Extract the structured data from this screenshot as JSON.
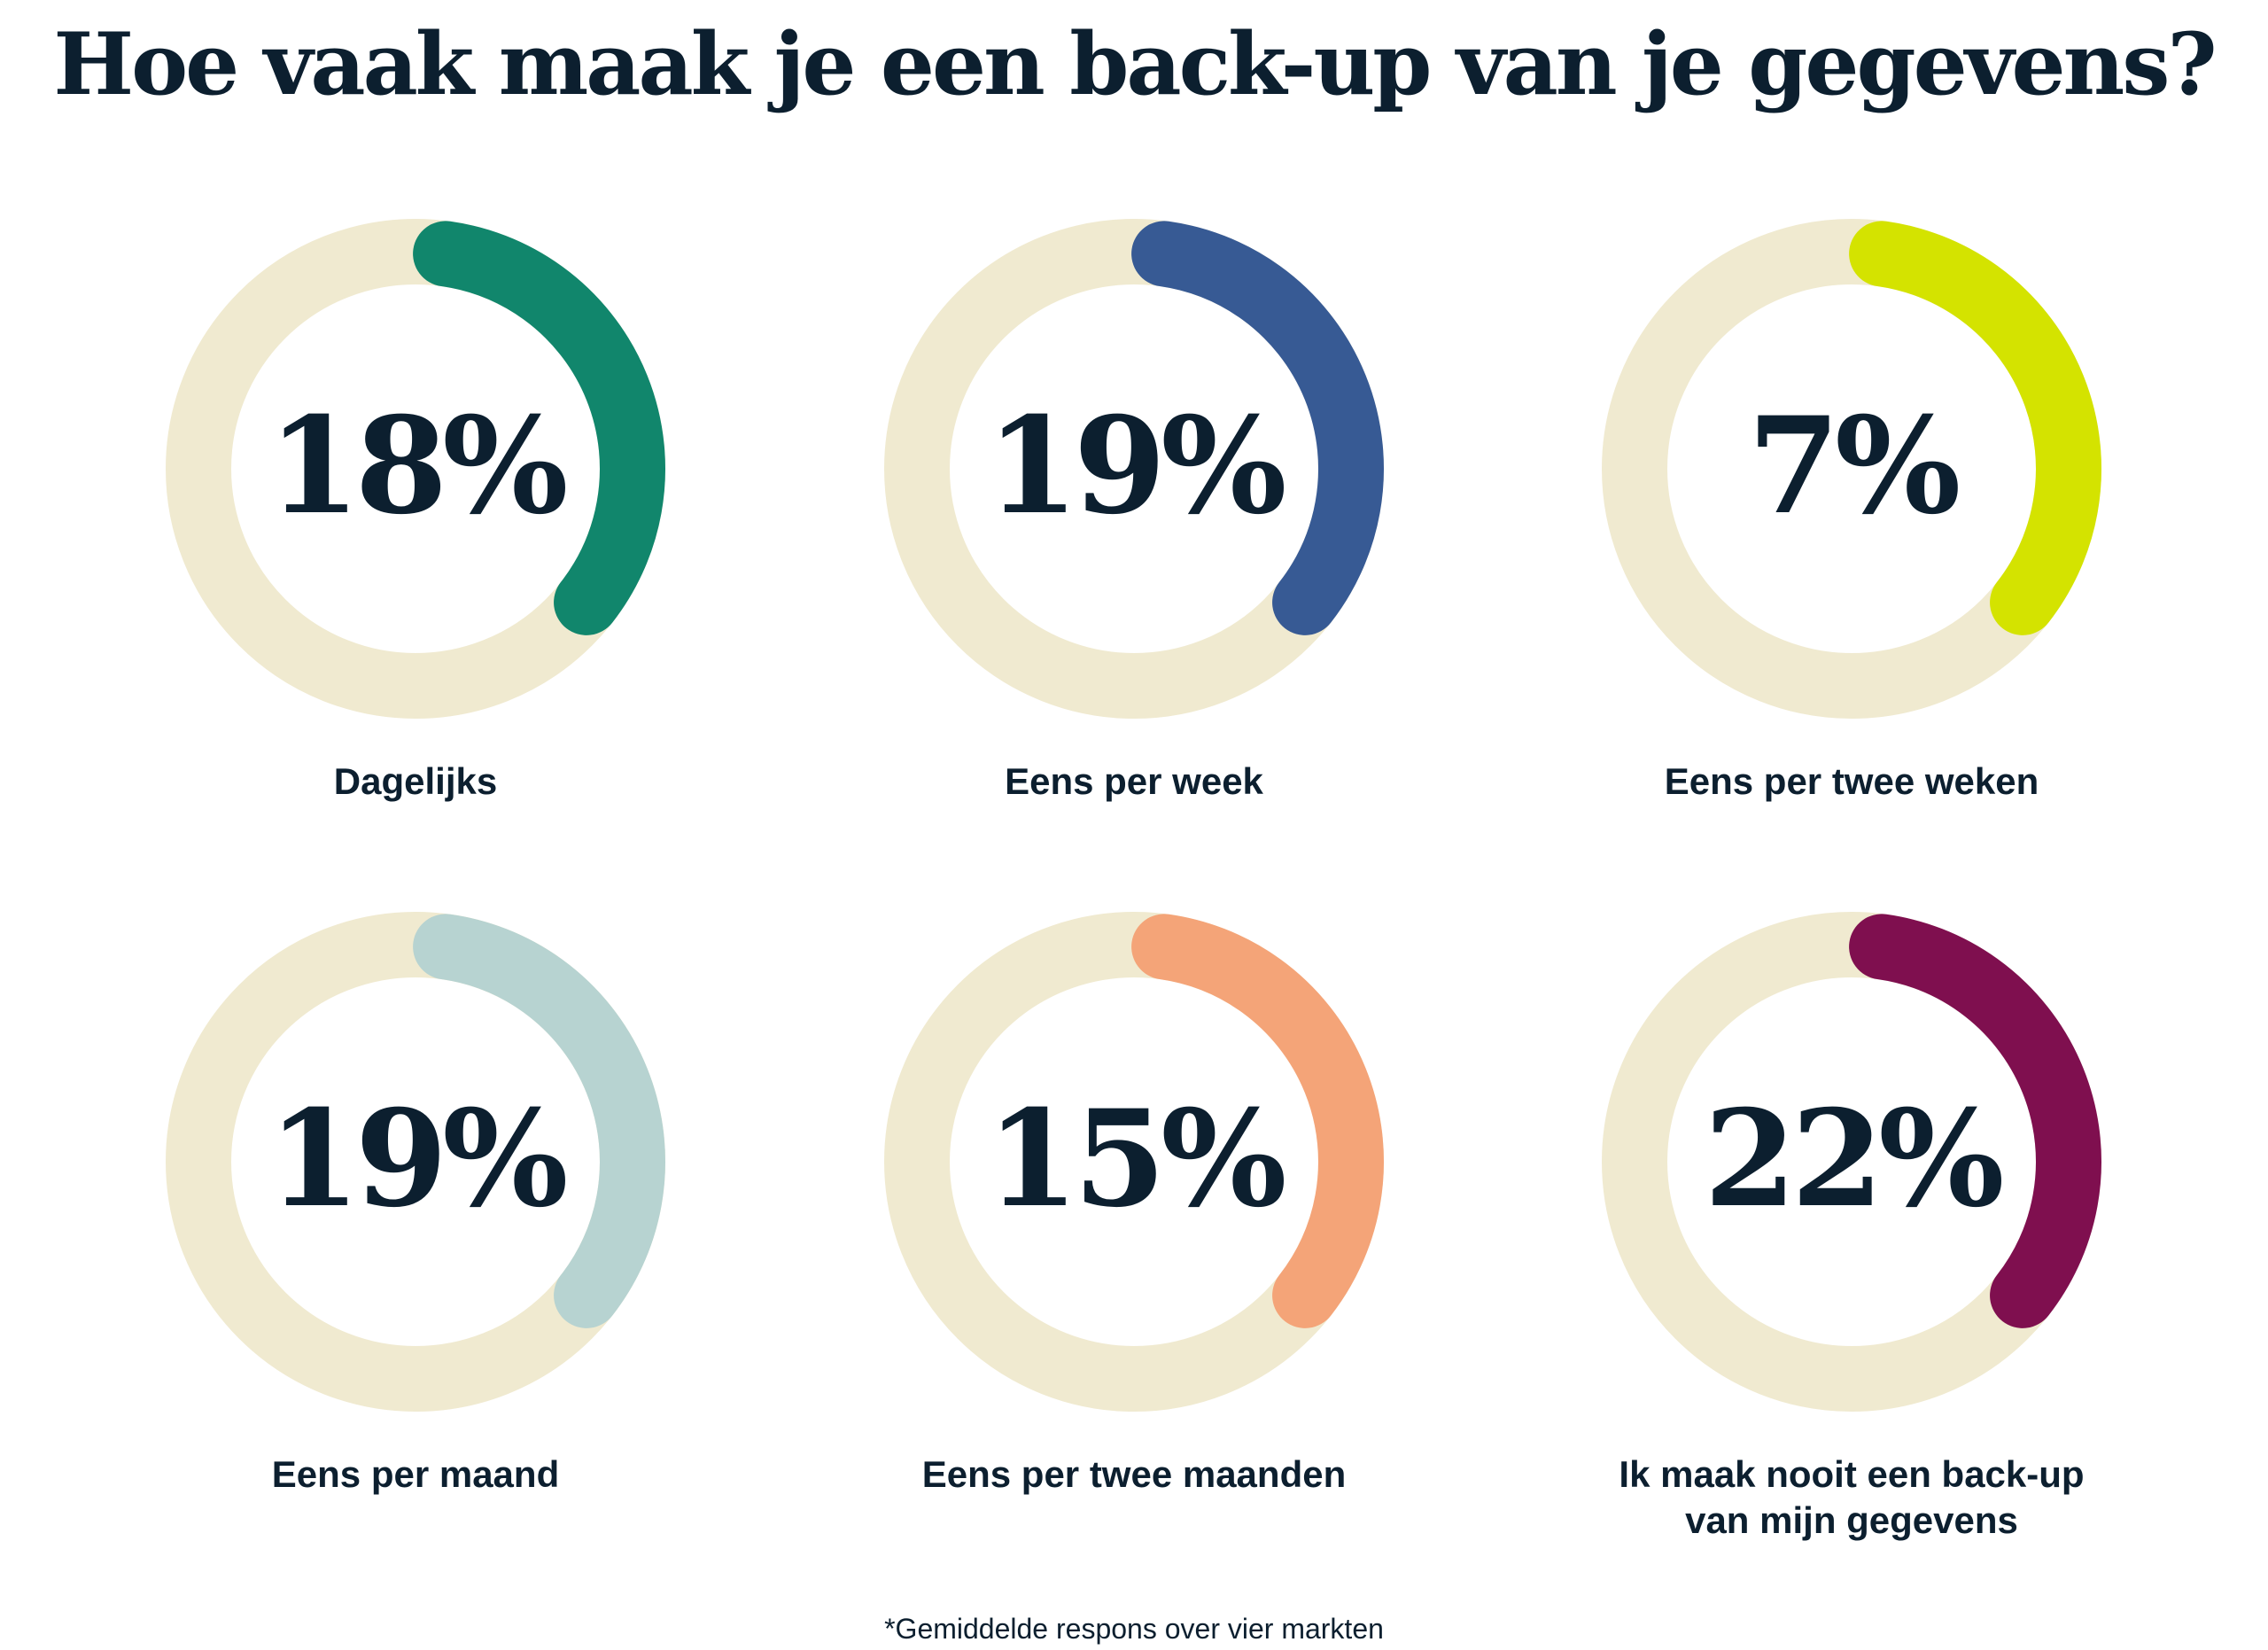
{
  "title": "Hoe vaak maak je een back-up van je gegevens?",
  "footnote": "*Gemiddelde respons over vier markten",
  "chart_data": {
    "type": "donut",
    "title": "Hoe vaak maak je een back-up van je gegevens?",
    "unit": "%",
    "track_color": "#f0ead0",
    "items": [
      {
        "label": "Dagelijks",
        "value": 18,
        "display": "18%",
        "color": "#11866c"
      },
      {
        "label": "Eens per week",
        "value": 19,
        "display": "19%",
        "color": "#375a94"
      },
      {
        "label": "Eens per twee weken",
        "value": 7,
        "display": "7%",
        "color": "#d4e300"
      },
      {
        "label": "Eens per maand",
        "value": 19,
        "display": "19%",
        "color": "#b7d3d1"
      },
      {
        "label": "Eens per twee maanden",
        "value": 15,
        "display": "15%",
        "color": "#f4a478"
      },
      {
        "label": "Ik maak nooit een back-up van mijn gegevens",
        "value": 22,
        "display": "22%",
        "color": "#7f0f4f"
      }
    ]
  }
}
